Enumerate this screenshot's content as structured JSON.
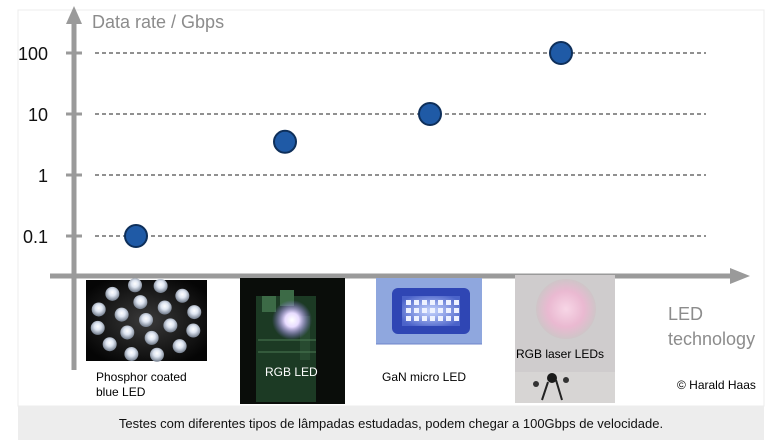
{
  "chart_data": {
    "type": "scatter",
    "y_axis_label": "Data rate / Gbps",
    "x_axis_label_lines": [
      "LED",
      "technology"
    ],
    "y_scale": "log",
    "y_ticks": [
      "100",
      "10",
      "1",
      "0.1"
    ],
    "ylim": [
      0.1,
      100
    ],
    "grid": true,
    "categories": [
      {
        "label_lines": [
          "Phosphor coated",
          "blue LED"
        ],
        "value": 0.1
      },
      {
        "label_lines": [
          "RGB LED"
        ],
        "value": 3.5
      },
      {
        "label_lines": [
          "GaN micro LED"
        ],
        "value": 10
      },
      {
        "label_lines": [
          "RGB laser LEDs"
        ],
        "value": 100
      }
    ]
  },
  "credit": "© Harald Haas",
  "caption": "Testes com diferentes tipos de lâmpadas estudadas, podem chegar a 100Gbps de velocidade.",
  "colors": {
    "axis": "#9a9a9a",
    "grid": "#222222",
    "marker_fill": "#1f5aa6",
    "marker_stroke": "#0e2f5a",
    "axis_label": "#8c8c8c"
  }
}
